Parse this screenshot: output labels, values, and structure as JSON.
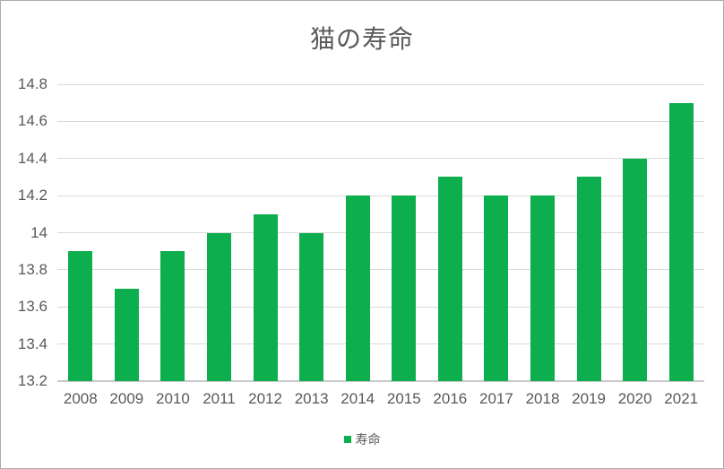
{
  "chart_data": {
    "type": "bar",
    "title": "猫の寿命",
    "categories": [
      "2008",
      "2009",
      "2010",
      "2011",
      "2012",
      "2013",
      "2014",
      "2015",
      "2016",
      "2017",
      "2018",
      "2019",
      "2020",
      "2021"
    ],
    "series": [
      {
        "name": "寿命",
        "values": [
          13.9,
          13.7,
          13.9,
          14.0,
          14.1,
          14.0,
          14.2,
          14.2,
          14.3,
          14.2,
          14.2,
          14.3,
          14.4,
          14.7
        ]
      }
    ],
    "xlabel": "",
    "ylabel": "",
    "ylim": [
      13.2,
      14.8
    ],
    "ytick_step": 0.2,
    "ytick_labels": [
      "13.2",
      "13.4",
      "13.6",
      "13.8",
      "14",
      "14.2",
      "14.4",
      "14.6",
      "14.8"
    ],
    "grid": true,
    "legend_position": "bottom",
    "colors": {
      "bar": "#0CAE4D",
      "text": "#595959",
      "gridline": "#D9D9D9",
      "axis_line": "#C9C9C9",
      "frame_border": "#ABABAB",
      "background": "#FFFFFF"
    }
  }
}
